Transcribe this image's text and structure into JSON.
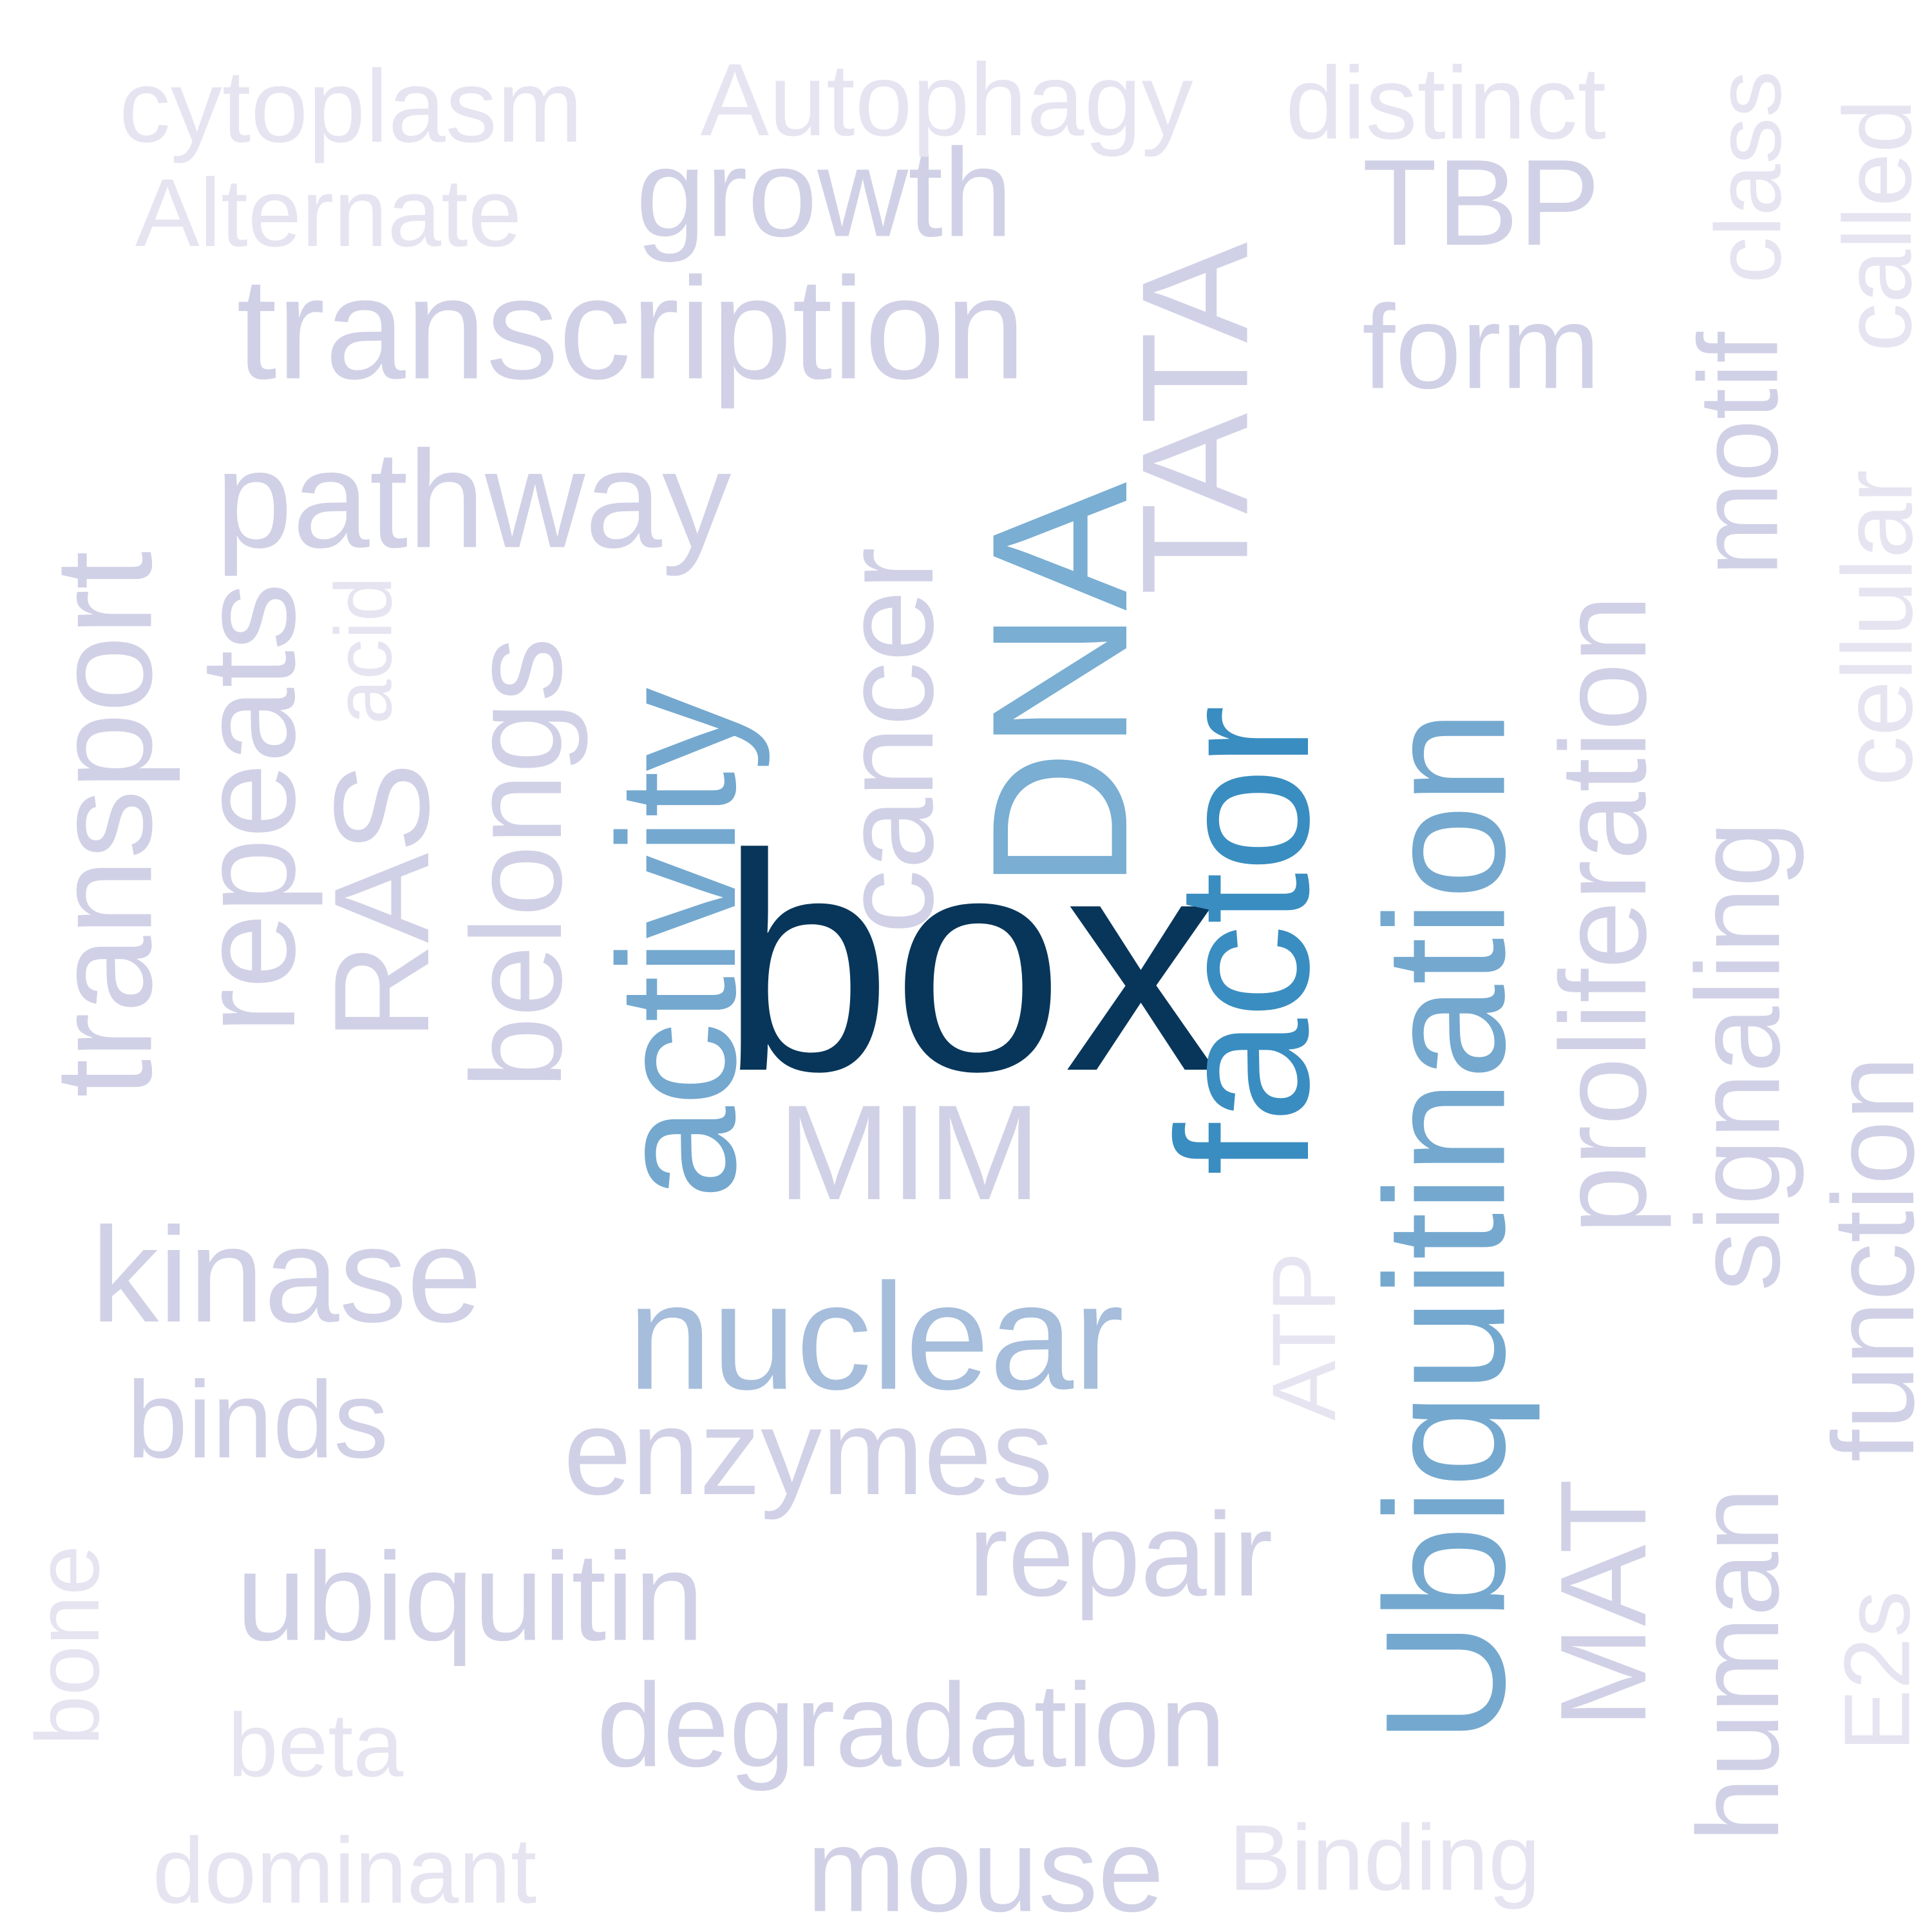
{
  "palette": {
    "darkest": "#08365a",
    "strong_blue": "#3a8dc0",
    "medium_blue": "#74a8cf",
    "light_blue": "#a6bddb",
    "lavender": "#d0d1e6",
    "pale_lavender": "#e7e4f1"
  },
  "words": [
    {
      "text": "box",
      "color": "#08365a",
      "weight": 1.0
    },
    {
      "text": "factor",
      "color": "#3a8dc0",
      "weight": 0.8
    },
    {
      "text": "Ubiquitination",
      "color": "#74a8cf",
      "weight": 0.7
    },
    {
      "text": "DNA",
      "color": "#7aaed2",
      "weight": 0.65
    },
    {
      "text": "activity",
      "color": "#74a8cf",
      "weight": 0.6
    },
    {
      "text": "nuclear",
      "color": "#a6bddb",
      "weight": 0.5
    },
    {
      "text": "TATA",
      "color": "#d0d1e6",
      "weight": 0.45
    },
    {
      "text": "transcription",
      "color": "#d0d1e6",
      "weight": 0.45
    },
    {
      "text": "pathway",
      "color": "#d0d1e6",
      "weight": 0.42
    },
    {
      "text": "transport",
      "color": "#d0d1e6",
      "weight": 0.42
    },
    {
      "text": "repeats",
      "color": "#d0d1e6",
      "weight": 0.4
    },
    {
      "text": "RAS",
      "color": "#d0d1e6",
      "weight": 0.4
    },
    {
      "text": "belongs",
      "color": "#d0d1e6",
      "weight": 0.38
    },
    {
      "text": "cancer",
      "color": "#d0d1e6",
      "weight": 0.38
    },
    {
      "text": "MIM",
      "color": "#d0d1e6",
      "weight": 0.4
    },
    {
      "text": "kinase",
      "color": "#d0d1e6",
      "weight": 0.4
    },
    {
      "text": "growth",
      "color": "#d0d1e6",
      "weight": 0.38
    },
    {
      "text": "TBP",
      "color": "#d0d1e6",
      "weight": 0.36
    },
    {
      "text": "form",
      "color": "#d0d1e6",
      "weight": 0.35
    },
    {
      "text": "proliferation",
      "color": "#d0d1e6",
      "weight": 0.36
    },
    {
      "text": "signaling",
      "color": "#d0d1e6",
      "weight": 0.35
    },
    {
      "text": "motif",
      "color": "#d0d1e6",
      "weight": 0.33
    },
    {
      "text": "MAT",
      "color": "#d0d1e6",
      "weight": 0.36
    },
    {
      "text": "human",
      "color": "#d0d1e6",
      "weight": 0.34
    },
    {
      "text": "function",
      "color": "#d0d1e6",
      "weight": 0.34
    },
    {
      "text": "binds",
      "color": "#d0d1e6",
      "weight": 0.32
    },
    {
      "text": "enzymes",
      "color": "#d0d1e6",
      "weight": 0.36
    },
    {
      "text": "ubiquitin",
      "color": "#d0d1e6",
      "weight": 0.37
    },
    {
      "text": "repair",
      "color": "#d0d1e6",
      "weight": 0.35
    },
    {
      "text": "degradation",
      "color": "#d0d1e6",
      "weight": 0.35
    },
    {
      "text": "mouse",
      "color": "#d0d1e6",
      "weight": 0.35
    },
    {
      "text": "cytoplasm",
      "color": "#e7e4f1",
      "weight": 0.3
    },
    {
      "text": "Autophagy",
      "color": "#e7e4f1",
      "weight": 0.3
    },
    {
      "text": "distinct",
      "color": "#e7e4f1",
      "weight": 0.3
    },
    {
      "text": "Alternate",
      "color": "#e7e4f1",
      "weight": 0.28
    },
    {
      "text": "class",
      "color": "#e7e4f1",
      "weight": 0.27
    },
    {
      "text": "called",
      "color": "#e7e4f1",
      "weight": 0.28
    },
    {
      "text": "cellular",
      "color": "#e7e4f1",
      "weight": 0.29
    },
    {
      "text": "acid",
      "color": "#e7e4f1",
      "weight": 0.24
    },
    {
      "text": "ATP",
      "color": "#e7e4f1",
      "weight": 0.26
    },
    {
      "text": "bone",
      "color": "#e7e4f1",
      "weight": 0.26
    },
    {
      "text": "beta",
      "color": "#e7e4f1",
      "weight": 0.26
    },
    {
      "text": "dominant",
      "color": "#e7e4f1",
      "weight": 0.27
    },
    {
      "text": "Binding",
      "color": "#e7e4f1",
      "weight": 0.27
    },
    {
      "text": "E2s",
      "color": "#e7e4f1",
      "weight": 0.27
    }
  ]
}
